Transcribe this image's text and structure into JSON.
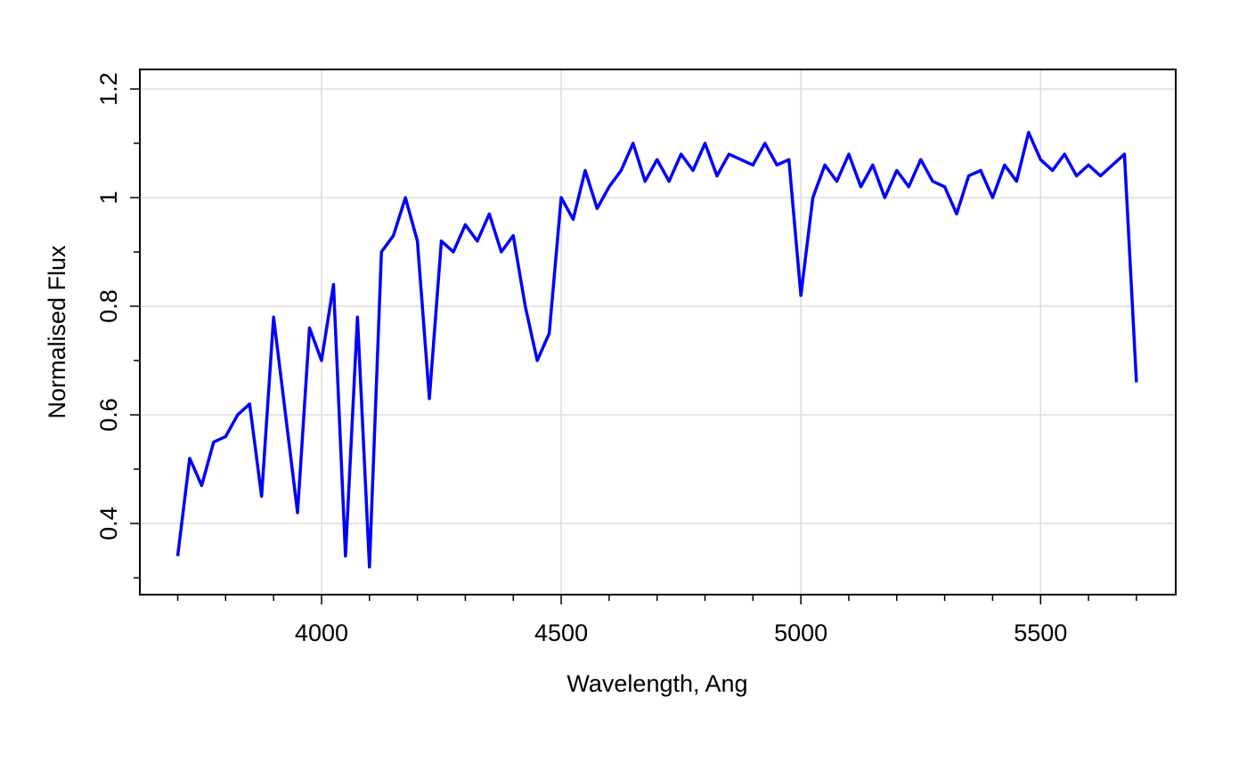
{
  "chart_data": {
    "type": "line",
    "xlabel": "Wavelength, Ang",
    "ylabel": "Normalised Flux",
    "x": [
      3700,
      3725,
      3750,
      3775,
      3800,
      3825,
      3850,
      3875,
      3900,
      3925,
      3950,
      3975,
      4000,
      4025,
      4050,
      4075,
      4100,
      4125,
      4150,
      4175,
      4200,
      4225,
      4250,
      4275,
      4300,
      4325,
      4350,
      4375,
      4400,
      4425,
      4450,
      4475,
      4500,
      4525,
      4550,
      4575,
      4600,
      4625,
      4650,
      4675,
      4700,
      4725,
      4750,
      4775,
      4800,
      4825,
      4850,
      4875,
      4900,
      4925,
      4950,
      4975,
      5000,
      5025,
      5050,
      5075,
      5100,
      5125,
      5150,
      5175,
      5200,
      5225,
      5250,
      5275,
      5300,
      5325,
      5350,
      5375,
      5400,
      5425,
      5450,
      5475,
      5500,
      5525,
      5550,
      5575,
      5600,
      5625,
      5650,
      5675,
      5700
    ],
    "values": [
      0.34,
      0.52,
      0.47,
      0.55,
      0.56,
      0.6,
      0.62,
      0.45,
      0.78,
      0.6,
      0.42,
      0.76,
      0.7,
      0.84,
      0.34,
      0.78,
      0.32,
      0.9,
      0.93,
      1.0,
      0.92,
      0.63,
      0.92,
      0.9,
      0.95,
      0.92,
      0.97,
      0.9,
      0.93,
      0.8,
      0.7,
      0.75,
      1.0,
      0.96,
      1.05,
      0.98,
      1.02,
      1.05,
      1.1,
      1.03,
      1.07,
      1.03,
      1.08,
      1.05,
      1.1,
      1.04,
      1.08,
      1.07,
      1.06,
      1.1,
      1.06,
      1.07,
      0.82,
      1.0,
      1.06,
      1.03,
      1.08,
      1.02,
      1.06,
      1.0,
      1.05,
      1.02,
      1.07,
      1.03,
      1.02,
      0.97,
      1.04,
      1.05,
      1.0,
      1.06,
      1.03,
      1.12,
      1.07,
      1.05,
      1.08,
      1.04,
      1.06,
      1.04,
      1.06,
      1.08,
      0.66
    ],
    "color": "#0000ff",
    "xlim": [
      3621,
      5782
    ],
    "ylim": [
      0.269,
      1.236
    ],
    "xticks": [
      4000,
      4500,
      5000,
      5500
    ],
    "xminorticks": [
      3700,
      3800,
      3900,
      4100,
      4200,
      4300,
      4400,
      4600,
      4700,
      4800,
      4900,
      5100,
      5200,
      5300,
      5400,
      5600,
      5700
    ],
    "yticks": [
      0.4,
      0.6,
      0.8,
      1,
      1.2
    ],
    "yminorticks": [
      0.3,
      0.5,
      0.7,
      0.9,
      1.1
    ],
    "grid": true
  }
}
